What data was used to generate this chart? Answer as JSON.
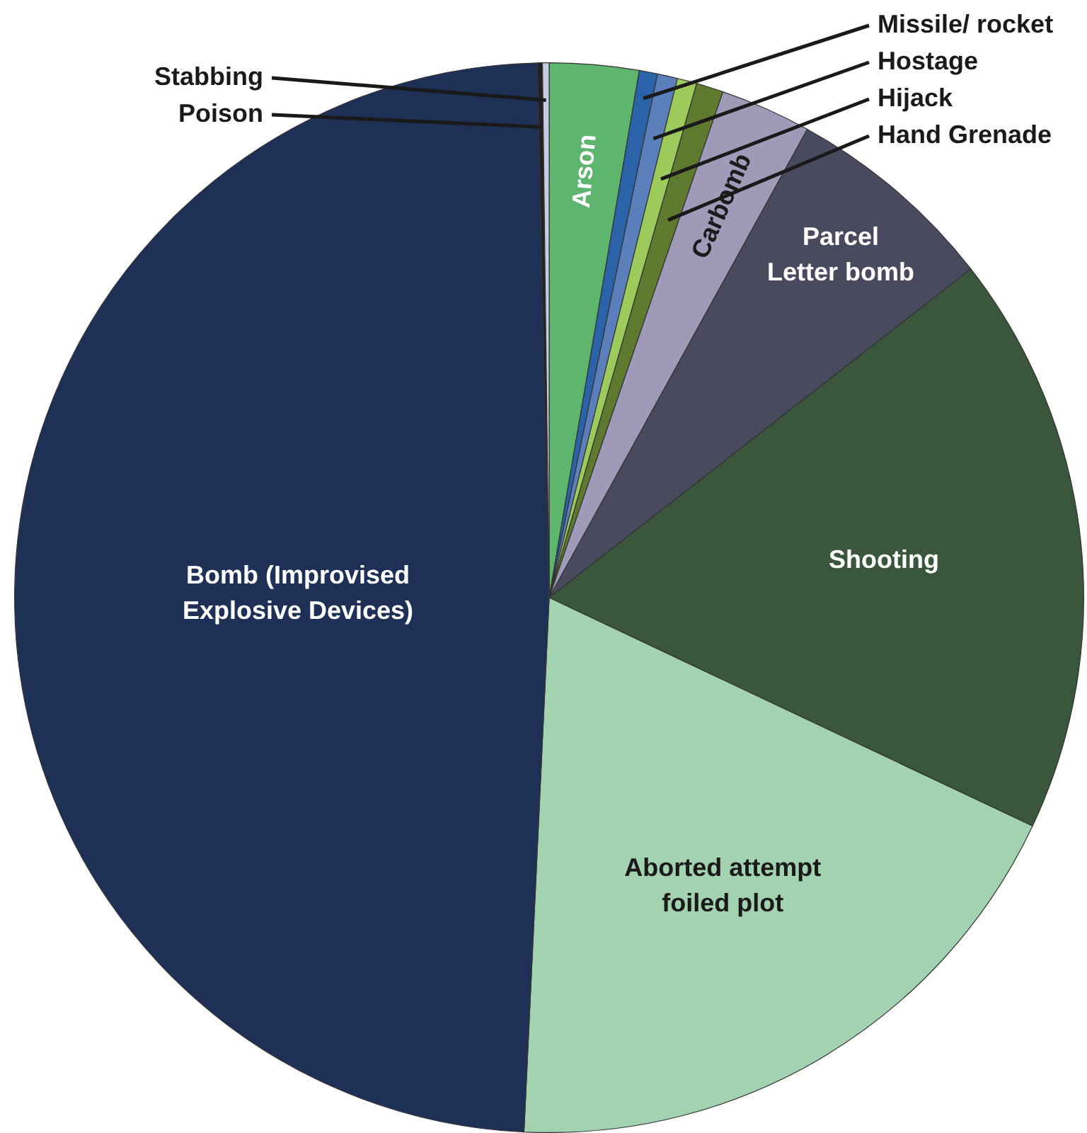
{
  "chart_data": {
    "type": "pie",
    "categories": [
      "Arson",
      "Missile/ rocket",
      "Hostage",
      "Hijack",
      "Hand Grenade",
      "Carbomb",
      "Parcel\nLetter bomb",
      "Shooting",
      "Aborted attempt\nfoiled plot",
      "Bomb (Improvised\nExplosive Devices)",
      "Poison",
      "Stabbing"
    ],
    "values": [
      2.7,
      0.55,
      0.61,
      0.59,
      0.82,
      2.75,
      6.45,
      17.55,
      18.73,
      48.9,
      0.15,
      0.2
    ],
    "colors": [
      "#5db56e",
      "#2a63a8",
      "#5b7fba",
      "#9ccb5c",
      "#5e7a2e",
      "#9e9ab8",
      "#4a4a5e",
      "#3a573c",
      "#a2d2b0",
      "#1f3057",
      "#222222",
      "#c5cde3"
    ]
  }
}
